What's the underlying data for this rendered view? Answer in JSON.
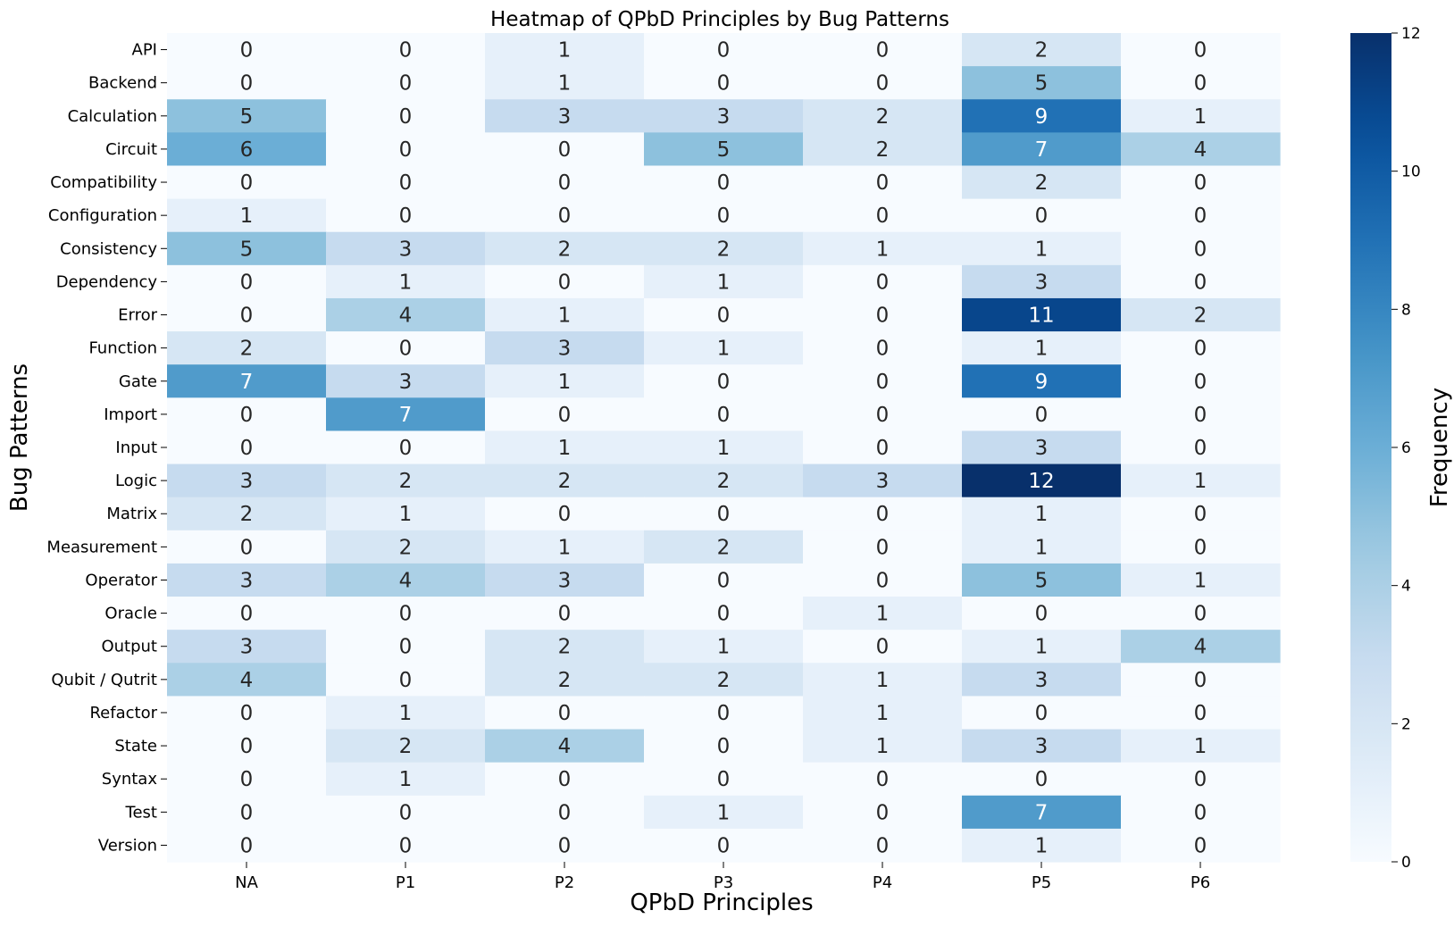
{
  "chart_data": {
    "type": "heatmap",
    "title": "Heatmap of QPbD Principles by Bug Patterns",
    "xlabel": "QPbD Principles",
    "ylabel": "Bug Patterns",
    "colorbar_label": "Frequency",
    "colormap": "Blues",
    "vmin": 0,
    "vmax": 12,
    "colorbar_ticks": [
      "0",
      "2",
      "4",
      "6",
      "8",
      "10",
      "12"
    ],
    "x_categories": [
      "NA",
      "P1",
      "P2",
      "P3",
      "P4",
      "P5",
      "P6"
    ],
    "y_categories": [
      "API",
      "Backend",
      "Calculation",
      "Circuit",
      "Compatibility",
      "Configuration",
      "Consistency",
      "Dependency",
      "Error",
      "Function",
      "Gate",
      "Import",
      "Input",
      "Logic",
      "Matrix",
      "Measurement",
      "Operator",
      "Oracle",
      "Output",
      "Qubit / Qutrit",
      "Refactor",
      "State",
      "Syntax",
      "Test",
      "Version"
    ],
    "values": [
      [
        0,
        0,
        1,
        0,
        0,
        2,
        0
      ],
      [
        0,
        0,
        1,
        0,
        0,
        5,
        0
      ],
      [
        5,
        0,
        3,
        3,
        2,
        9,
        1
      ],
      [
        6,
        0,
        0,
        5,
        2,
        7,
        4
      ],
      [
        0,
        0,
        0,
        0,
        0,
        2,
        0
      ],
      [
        1,
        0,
        0,
        0,
        0,
        0,
        0
      ],
      [
        5,
        3,
        2,
        2,
        1,
        1,
        0
      ],
      [
        0,
        1,
        0,
        1,
        0,
        3,
        0
      ],
      [
        0,
        4,
        1,
        0,
        0,
        11,
        2
      ],
      [
        2,
        0,
        3,
        1,
        0,
        1,
        0
      ],
      [
        7,
        3,
        1,
        0,
        0,
        9,
        0
      ],
      [
        0,
        7,
        0,
        0,
        0,
        0,
        0
      ],
      [
        0,
        0,
        1,
        1,
        0,
        3,
        0
      ],
      [
        3,
        2,
        2,
        2,
        3,
        12,
        1
      ],
      [
        2,
        1,
        0,
        0,
        0,
        1,
        0
      ],
      [
        0,
        2,
        1,
        2,
        0,
        1,
        0
      ],
      [
        3,
        4,
        3,
        0,
        0,
        5,
        1
      ],
      [
        0,
        0,
        0,
        0,
        1,
        0,
        0
      ],
      [
        3,
        0,
        2,
        1,
        0,
        1,
        4
      ],
      [
        4,
        0,
        2,
        2,
        1,
        3,
        0
      ],
      [
        0,
        1,
        0,
        0,
        1,
        0,
        0
      ],
      [
        0,
        2,
        4,
        0,
        1,
        3,
        1
      ],
      [
        0,
        1,
        0,
        0,
        0,
        0,
        0
      ],
      [
        0,
        0,
        0,
        1,
        0,
        7,
        0
      ],
      [
        0,
        0,
        0,
        0,
        0,
        1,
        0
      ]
    ]
  }
}
